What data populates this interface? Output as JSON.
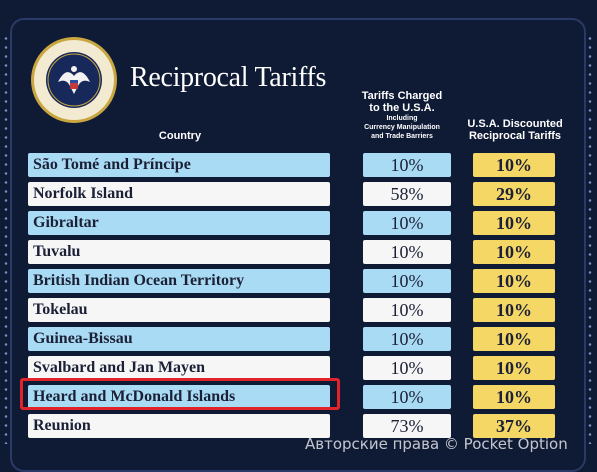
{
  "header": {
    "title": "Reciprocal Tariffs",
    "country_label": "Country",
    "charged_label_line1": "Tariffs Charged",
    "charged_label_line2": "to the U.S.A.",
    "charged_sub_line1": "Including",
    "charged_sub_line2": "Currency Manipulation",
    "charged_sub_line3": "and Trade Barriers",
    "discounted_label_line1": "U.S.A. Discounted",
    "discounted_label_line2": "Reciprocal Tariffs"
  },
  "seal": {
    "text": "SEAL OF THE PRESIDENT OF THE UNITED STATES"
  },
  "rows": [
    {
      "country": "São Tomé and Príncipe",
      "charged": "10%",
      "discounted": "10%"
    },
    {
      "country": "Norfolk Island",
      "charged": "58%",
      "discounted": "29%"
    },
    {
      "country": "Gibraltar",
      "charged": "10%",
      "discounted": "10%"
    },
    {
      "country": "Tuvalu",
      "charged": "10%",
      "discounted": "10%"
    },
    {
      "country": "British Indian Ocean Territory",
      "charged": "10%",
      "discounted": "10%"
    },
    {
      "country": "Tokelau",
      "charged": "10%",
      "discounted": "10%"
    },
    {
      "country": "Guinea-Bissau",
      "charged": "10%",
      "discounted": "10%"
    },
    {
      "country": "Svalbard and Jan Mayen",
      "charged": "10%",
      "discounted": "10%"
    },
    {
      "country": "Heard and McDonald Islands",
      "charged": "10%",
      "discounted": "10%"
    },
    {
      "country": "Reunion",
      "charged": "73%",
      "discounted": "37%"
    }
  ],
  "watermark": "Авторские права © Pocket Option",
  "colors": {
    "background": "#0f1a34",
    "blue_row": "#a9dcf4",
    "white_row": "#f6f6f6",
    "discount_cell": "#f5d765",
    "highlight": "#e0242a"
  }
}
